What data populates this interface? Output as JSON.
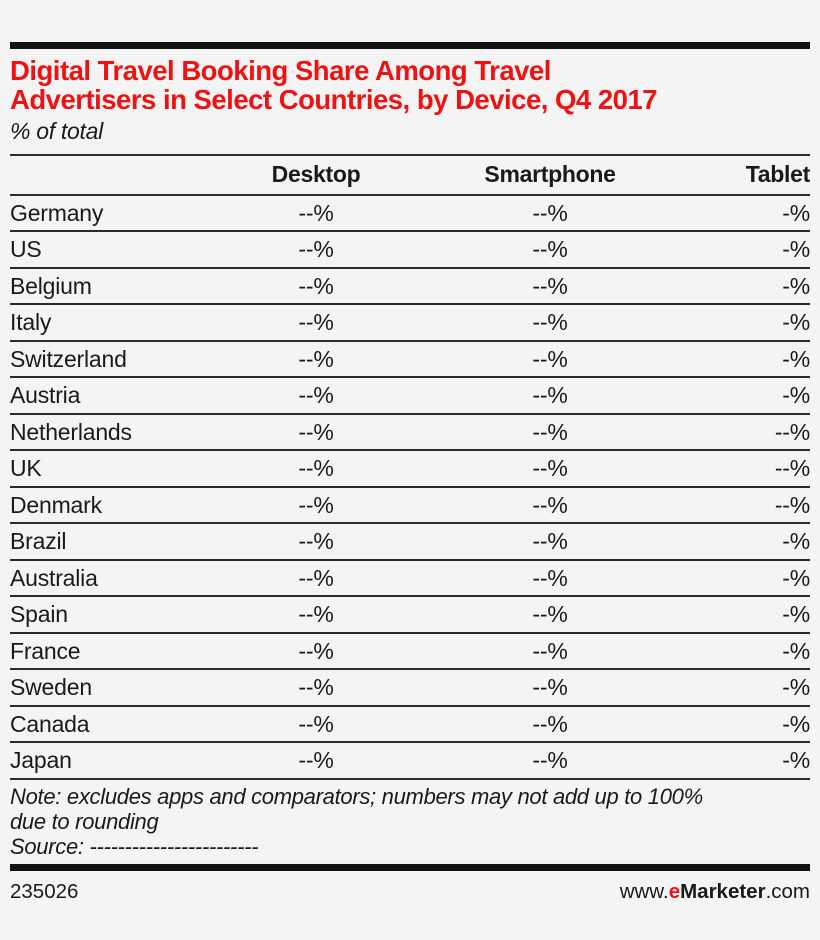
{
  "colors": {
    "background": "#f4f4f4",
    "accent_red": "#ee1212",
    "text": "#1a1a1a",
    "rule": "#2b2b2b"
  },
  "header": {
    "title_line1": "Digital Travel Booking Share Among Travel",
    "title_line2": "Advertisers in Select Countries, by Device, Q4 2017",
    "subtitle": "% of total"
  },
  "footnotes": {
    "note_line1": "Note: excludes apps and comparators; numbers may not add up to 100%",
    "note_line2": "due to rounding",
    "source": "Source: ------------------------"
  },
  "footer": {
    "chart_id": "235026",
    "url_prefix": "www.",
    "url_brand_e": "e",
    "url_brand_rest": "Marketer",
    "url_suffix": ".com"
  },
  "chart_data": {
    "type": "table",
    "title": "Digital Travel Booking Share Among Travel Advertisers in Select Countries, by Device, Q4 2017",
    "subtitle": "% of total",
    "categories": [
      "Germany",
      "US",
      "Belgium",
      "Italy",
      "Switzerland",
      "Austria",
      "Netherlands",
      "UK",
      "Denmark",
      "Brazil",
      "Australia",
      "Spain",
      "France",
      "Sweden",
      "Canada",
      "Japan"
    ],
    "series": [
      {
        "name": "Desktop",
        "values": [
          "--%",
          "--%",
          "--%",
          "--%",
          "--%",
          "--%",
          "--%",
          "--%",
          "--%",
          "--%",
          "--%",
          "--%",
          "--%",
          "--%",
          "--%",
          "--%"
        ]
      },
      {
        "name": "Smartphone",
        "values": [
          "--%",
          "--%",
          "--%",
          "--%",
          "--%",
          "--%",
          "--%",
          "--%",
          "--%",
          "--%",
          "--%",
          "--%",
          "--%",
          "--%",
          "--%",
          "--%"
        ]
      },
      {
        "name": "Tablet",
        "values": [
          "-%",
          "-%",
          "-%",
          "-%",
          "-%",
          "-%",
          "--%",
          "--%",
          "--%",
          "-%",
          "-%",
          "-%",
          "-%",
          "-%",
          "-%",
          "-%"
        ]
      }
    ],
    "note": "Note: excludes apps and comparators; numbers may not add up to 100% due to rounding",
    "source": "Source: ------------------------",
    "chart_id": "235026",
    "website": "www.eMarketer.com",
    "legend_position": "none",
    "grid": "horizontal-rules"
  }
}
